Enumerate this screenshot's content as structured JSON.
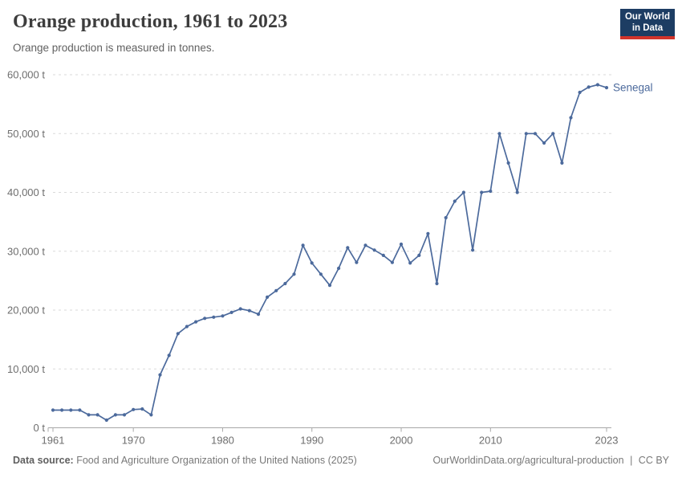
{
  "header": {
    "title": "Orange production, 1961 to 2023",
    "subtitle": "Orange production is measured in tonnes.",
    "logo": {
      "line1": "Our World",
      "line2": "in Data"
    }
  },
  "chart_data": {
    "type": "line",
    "title": "Orange production, 1961 to 2023",
    "unit": "tonnes",
    "xlim": [
      1961,
      2023
    ],
    "ylim": [
      0,
      60000
    ],
    "x_ticks": [
      1961,
      1970,
      1980,
      1990,
      2000,
      2010,
      2023
    ],
    "y_ticks": [
      0,
      10000,
      20000,
      30000,
      40000,
      50000,
      60000
    ],
    "y_tick_suffix": " t",
    "grid": "horizontal dashed",
    "legend": "end-of-line label",
    "series": [
      {
        "name": "Senegal",
        "color": "#4C6A9C",
        "x": [
          1961,
          1962,
          1963,
          1964,
          1965,
          1966,
          1967,
          1968,
          1969,
          1970,
          1971,
          1972,
          1973,
          1974,
          1975,
          1976,
          1977,
          1978,
          1979,
          1980,
          1981,
          1982,
          1983,
          1984,
          1985,
          1986,
          1987,
          1988,
          1989,
          1990,
          1991,
          1992,
          1993,
          1994,
          1995,
          1996,
          1997,
          1998,
          1999,
          2000,
          2001,
          2002,
          2003,
          2004,
          2005,
          2006,
          2007,
          2008,
          2009,
          2010,
          2011,
          2012,
          2013,
          2014,
          2015,
          2016,
          2017,
          2018,
          2019,
          2020,
          2021,
          2022,
          2023
        ],
        "values": [
          3000,
          3000,
          3000,
          3000,
          2200,
          2200,
          1300,
          2200,
          2200,
          3100,
          3200,
          2200,
          9000,
          12300,
          16000,
          17200,
          18000,
          18600,
          18800,
          19000,
          19600,
          20200,
          19900,
          19300,
          22200,
          23300,
          24500,
          26100,
          31000,
          28000,
          26100,
          24200,
          27100,
          30600,
          28100,
          31000,
          30200,
          29300,
          28100,
          31200,
          28000,
          29300,
          33000,
          24500,
          35700,
          38500,
          40000,
          30200,
          40000,
          40200,
          50000,
          45000,
          40000,
          50000,
          50000,
          48400,
          50000,
          45000,
          52700,
          57000,
          57900,
          58300,
          57800
        ]
      }
    ]
  },
  "footer": {
    "datasource_label": "Data source:",
    "datasource_text": "Food and Agriculture Organization of the United Nations (2025)",
    "url": "OurWorldinData.org/agricultural-production",
    "separator": "|",
    "license": "CC BY"
  },
  "colors": {
    "line": "#4C6A9C",
    "gridline": "#dadada",
    "axis": "#a8a8a8",
    "tick_label": "#6e6e6e",
    "logo_bg": "#1d3d63",
    "logo_red": "#d2342b"
  }
}
